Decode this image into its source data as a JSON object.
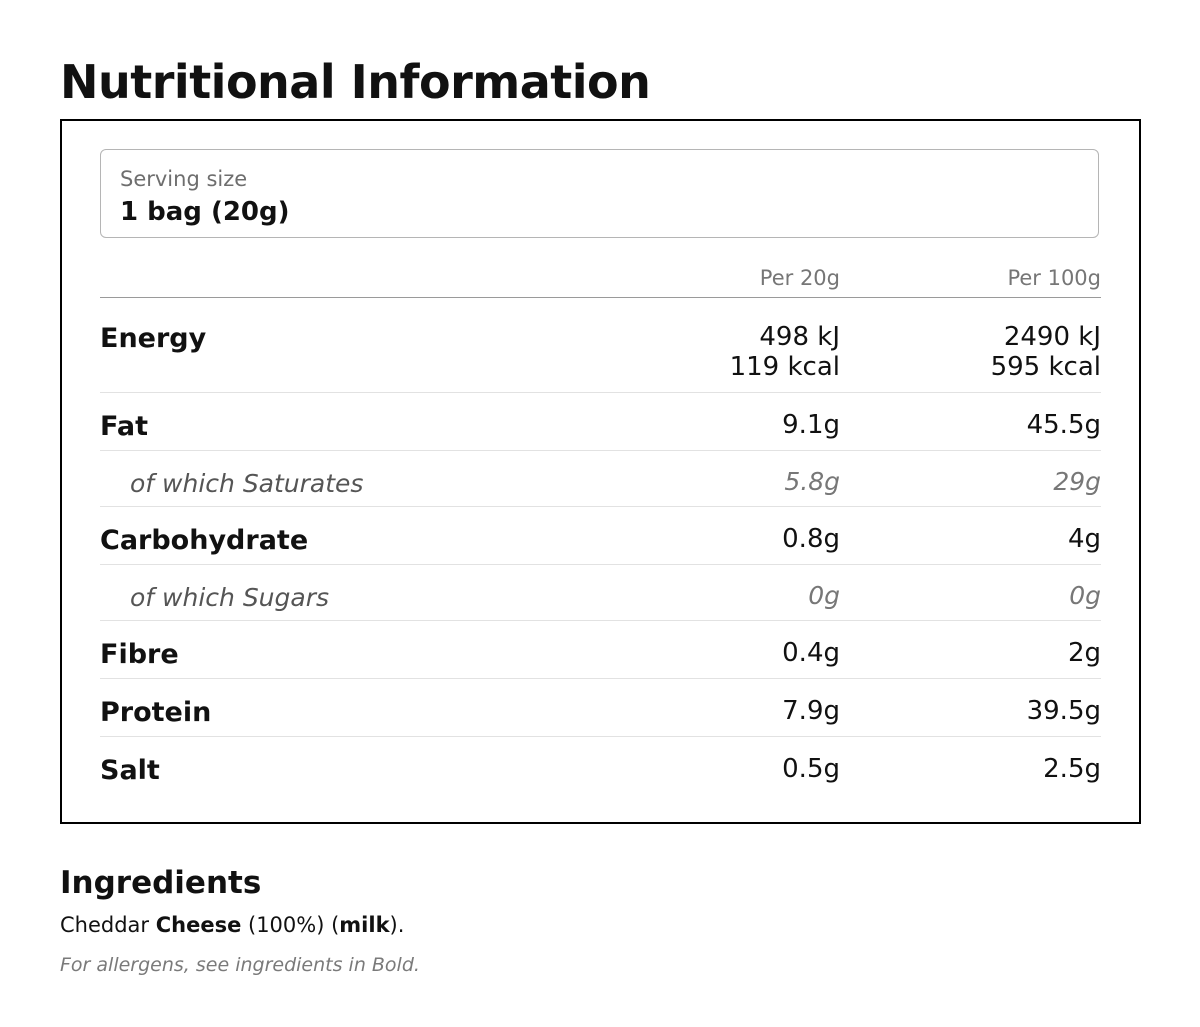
{
  "title": "Nutritional Information",
  "serving": {
    "label": "Serving size",
    "value": "1 bag (20g)"
  },
  "columns": {
    "per_serving": "Per 20g",
    "per_100g": "Per 100g"
  },
  "rows": [
    {
      "label": "Energy",
      "sub": false,
      "per_serving": [
        "498 kJ",
        "119 kcal"
      ],
      "per_100g": [
        "2490 kJ",
        "595 kcal"
      ]
    },
    {
      "label": "Fat",
      "sub": false,
      "per_serving": "9.1g",
      "per_100g": "45.5g"
    },
    {
      "label": "of which Saturates",
      "sub": true,
      "per_serving": "5.8g",
      "per_100g": "29g"
    },
    {
      "label": "Carbohydrate",
      "sub": false,
      "per_serving": "0.8g",
      "per_100g": "4g"
    },
    {
      "label": "of which Sugars",
      "sub": true,
      "per_serving": "0g",
      "per_100g": "0g"
    },
    {
      "label": "Fibre",
      "sub": false,
      "per_serving": "0.4g",
      "per_100g": "2g"
    },
    {
      "label": "Protein",
      "sub": false,
      "per_serving": "7.9g",
      "per_100g": "39.5g"
    },
    {
      "label": "Salt",
      "sub": false,
      "per_serving": "0.5g",
      "per_100g": "2.5g"
    }
  ],
  "ingredients": {
    "title": "Ingredients",
    "parts": [
      {
        "text": "Cheddar ",
        "bold": false
      },
      {
        "text": "Cheese",
        "bold": true
      },
      {
        "text": " (100%) (",
        "bold": false
      },
      {
        "text": "milk",
        "bold": true
      },
      {
        "text": ").",
        "bold": false
      }
    ],
    "allergen_note": "For allergens, see ingredients in Bold."
  }
}
